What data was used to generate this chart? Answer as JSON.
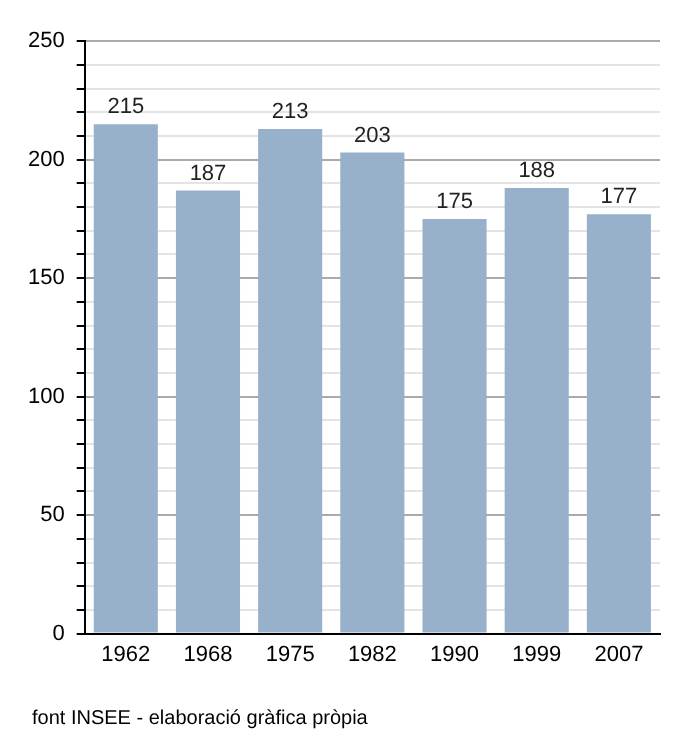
{
  "chart_data": {
    "type": "bar",
    "categories": [
      "1962",
      "1968",
      "1975",
      "1982",
      "1990",
      "1999",
      "2007"
    ],
    "values": [
      215,
      187,
      213,
      203,
      175,
      188,
      177
    ],
    "color": "#98b1cb",
    "data_labels": true,
    "grid": "y",
    "ylim": [
      0,
      250
    ],
    "yticks": [
      0,
      {
        "value": 10,
        "label": null
      },
      {
        "value": 20,
        "label": null
      },
      {
        "value": 30,
        "label": null
      },
      {
        "value": 40,
        "label": null
      },
      50,
      {
        "value": 60,
        "label": null
      },
      {
        "value": 70,
        "label": null
      },
      {
        "value": 80,
        "label": null
      },
      {
        "value": 90,
        "label": null
      },
      100,
      {
        "value": 110,
        "label": null
      },
      {
        "value": 120,
        "label": null
      },
      {
        "value": 130,
        "label": null
      },
      {
        "value": 140,
        "label": null
      },
      150,
      {
        "value": 160,
        "label": null
      },
      {
        "value": 170,
        "label": null
      },
      {
        "value": 180,
        "label": null
      },
      {
        "value": 190,
        "label": null
      },
      200,
      {
        "value": 210,
        "label": null
      },
      {
        "value": 220,
        "label": null
      },
      {
        "value": 230,
        "label": null
      },
      {
        "value": 240,
        "label": null
      },
      250
    ],
    "annotations": [
      "font INSEE - elaboració gràfica pròpia"
    ]
  }
}
